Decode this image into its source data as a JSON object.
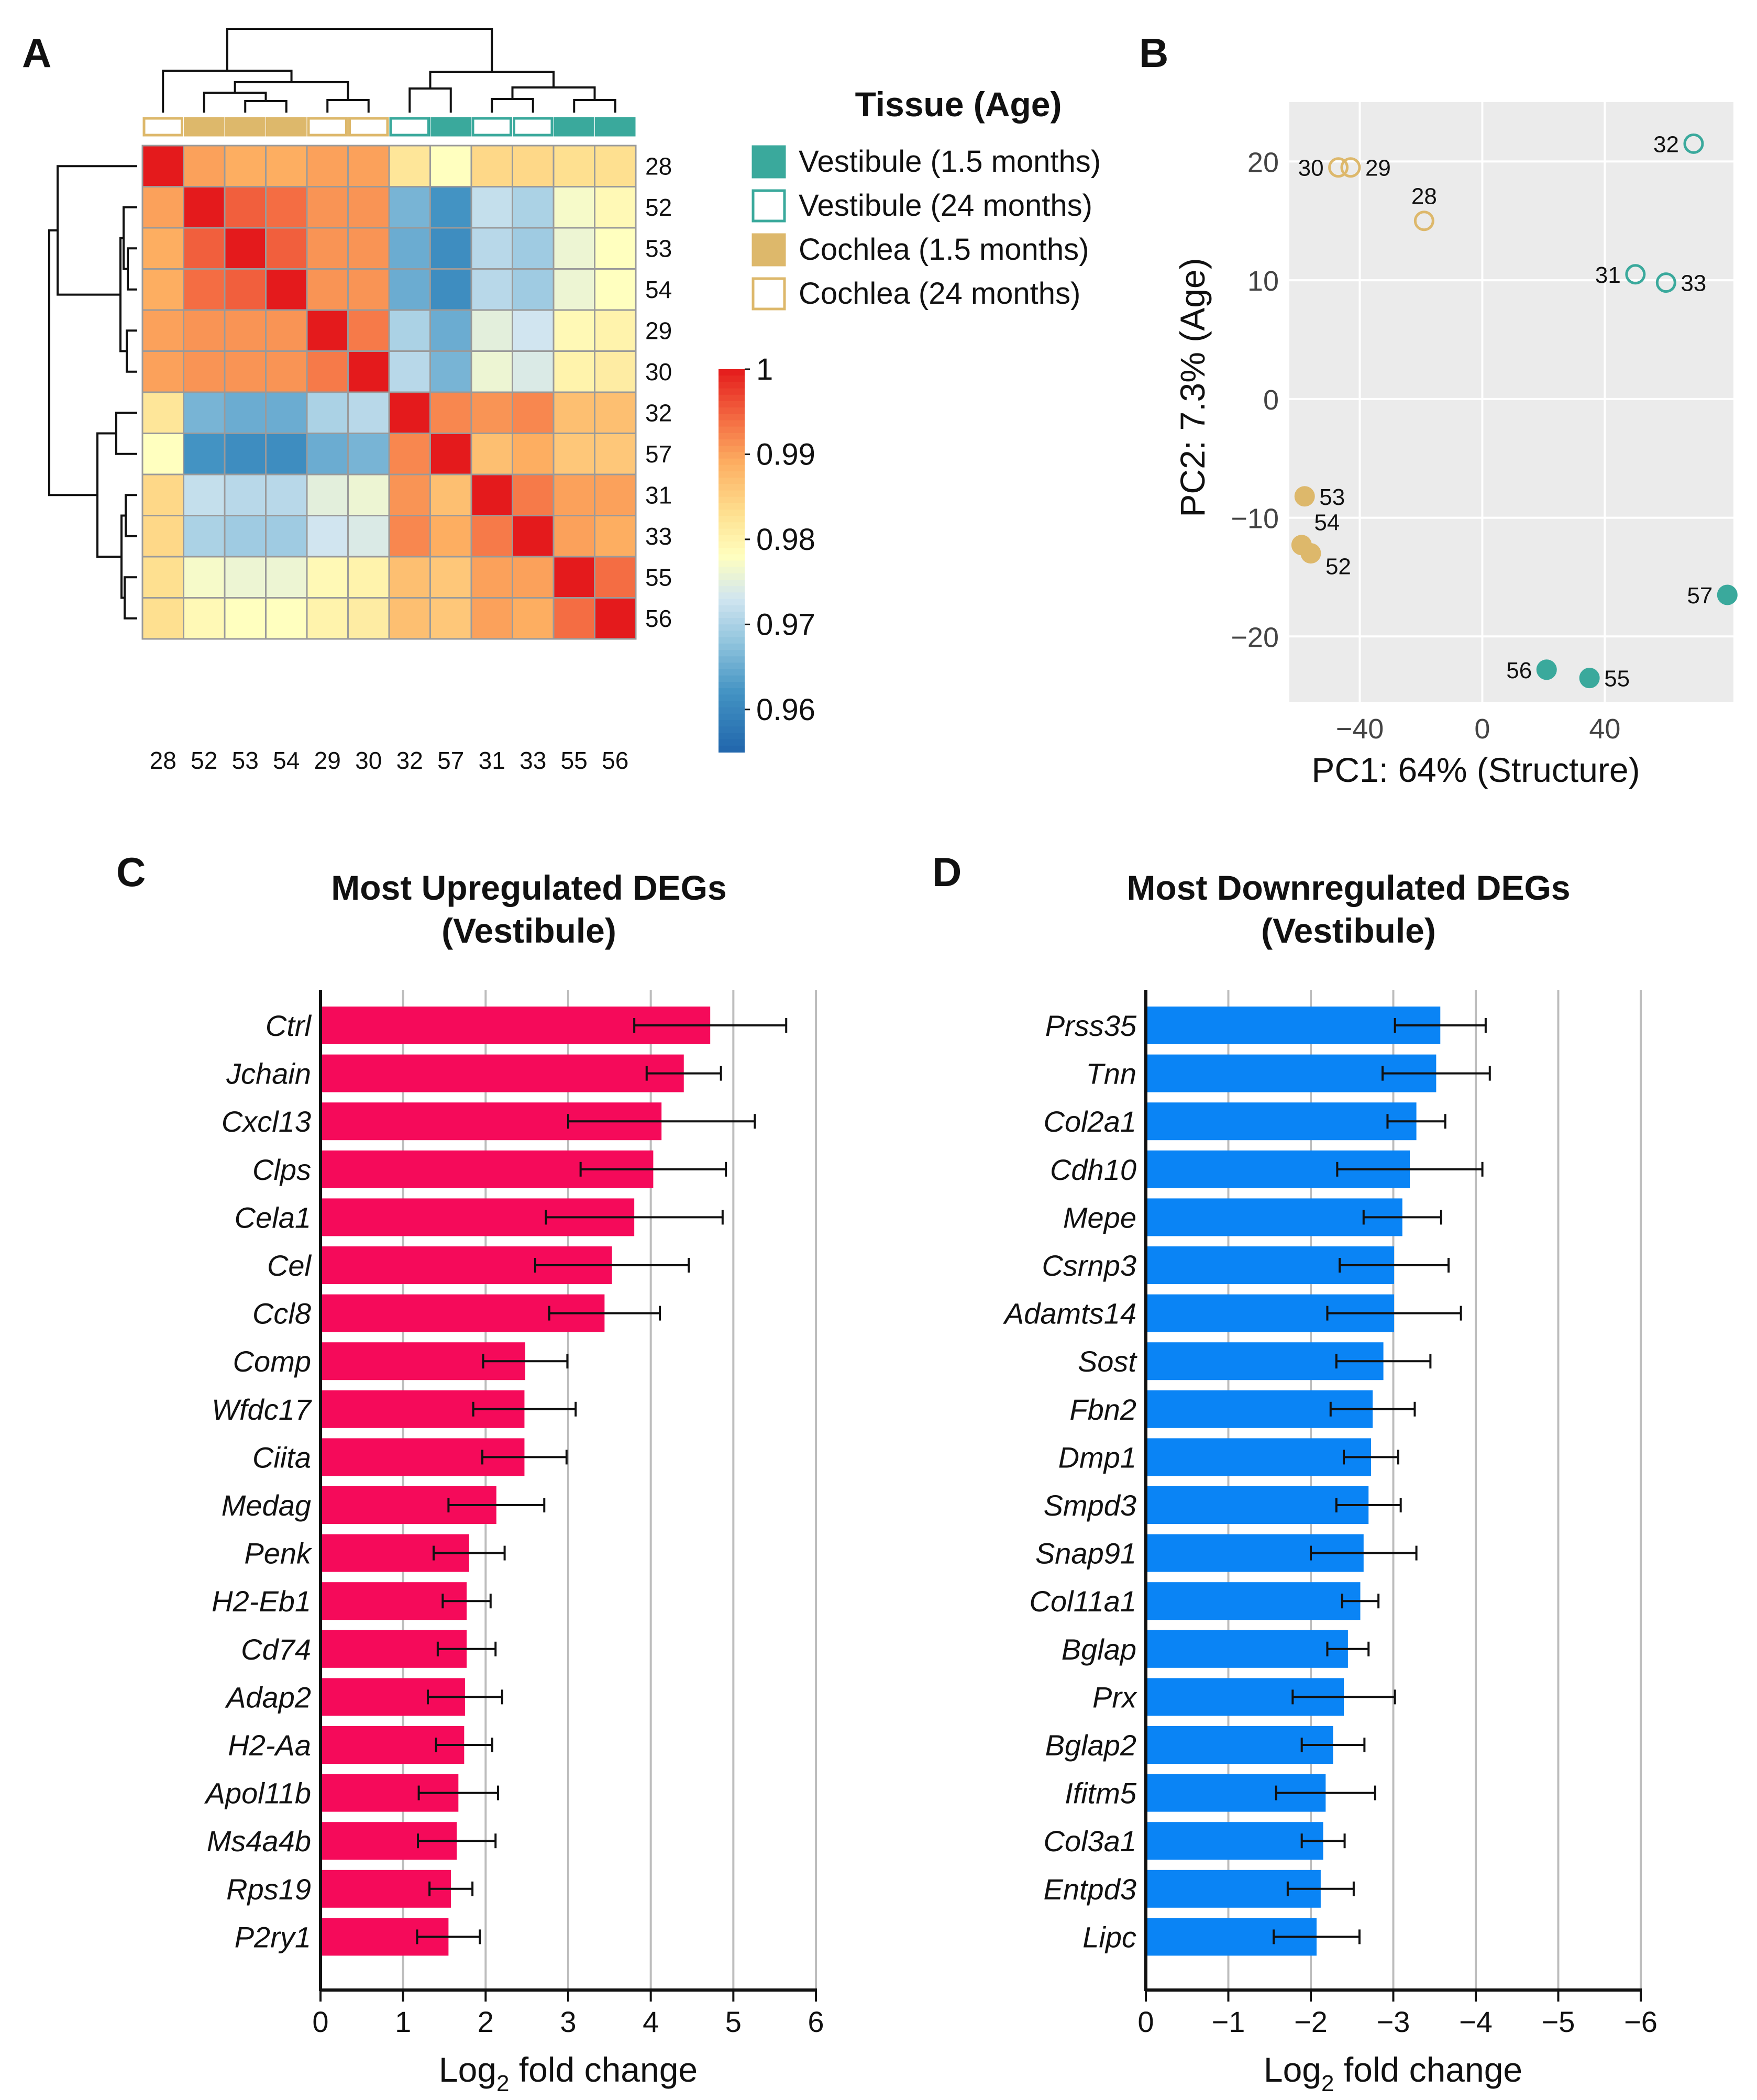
{
  "panel_labels": {
    "a": "A",
    "b": "B",
    "c": "C",
    "d": "D"
  },
  "colors": {
    "vestibule": "#3aa99c",
    "cochlea": "#ddb86b",
    "up_bar": "#f50a5a",
    "down_bar": "#0a84f5",
    "pca_bg": "#ebebeb",
    "grid": "#bdbdbd"
  },
  "chart_data": [
    {
      "panel": "A",
      "type": "heatmap",
      "title": "",
      "legend_title": "Tissue (Age)",
      "legend": [
        {
          "label": "Vestibule (1.5 months)",
          "tissue": "vestibule",
          "filled": true
        },
        {
          "label": "Vestibule (24 months)",
          "tissue": "vestibule",
          "filled": false
        },
        {
          "label": "Cochlea (1.5 months)",
          "tissue": "cochlea",
          "filled": true
        },
        {
          "label": "Cochlea (24 months)",
          "tissue": "cochlea",
          "filled": false
        }
      ],
      "col_labels": [
        "28",
        "52",
        "53",
        "54",
        "29",
        "30",
        "32",
        "57",
        "31",
        "33",
        "55",
        "56"
      ],
      "row_labels": [
        "28",
        "52",
        "53",
        "54",
        "29",
        "30",
        "32",
        "57",
        "31",
        "33",
        "55",
        "56"
      ],
      "annotation": [
        {
          "tissue": "cochlea",
          "filled": false
        },
        {
          "tissue": "cochlea",
          "filled": true
        },
        {
          "tissue": "cochlea",
          "filled": true
        },
        {
          "tissue": "cochlea",
          "filled": true
        },
        {
          "tissue": "cochlea",
          "filled": false
        },
        {
          "tissue": "cochlea",
          "filled": false
        },
        {
          "tissue": "vestibule",
          "filled": false
        },
        {
          "tissue": "vestibule",
          "filled": true
        },
        {
          "tissue": "vestibule",
          "filled": false
        },
        {
          "tissue": "vestibule",
          "filled": false
        },
        {
          "tissue": "vestibule",
          "filled": true
        },
        {
          "tissue": "vestibule",
          "filled": true
        }
      ],
      "matrix": [
        [
          1.0,
          0.99,
          0.989,
          0.989,
          0.99,
          0.99,
          0.982,
          0.978,
          0.984,
          0.984,
          0.983,
          0.983
        ],
        [
          0.99,
          1.0,
          0.995,
          0.994,
          0.991,
          0.991,
          0.966,
          0.962,
          0.972,
          0.97,
          0.977,
          0.979
        ],
        [
          0.989,
          0.995,
          1.0,
          0.995,
          0.991,
          0.991,
          0.965,
          0.961,
          0.971,
          0.969,
          0.976,
          0.978
        ],
        [
          0.989,
          0.994,
          0.995,
          1.0,
          0.991,
          0.991,
          0.965,
          0.961,
          0.971,
          0.969,
          0.976,
          0.978
        ],
        [
          0.99,
          0.991,
          0.991,
          0.991,
          1.0,
          0.993,
          0.97,
          0.965,
          0.975,
          0.973,
          0.979,
          0.98
        ],
        [
          0.99,
          0.991,
          0.991,
          0.991,
          0.993,
          1.0,
          0.971,
          0.966,
          0.976,
          0.974,
          0.98,
          0.981
        ],
        [
          0.982,
          0.966,
          0.965,
          0.965,
          0.97,
          0.971,
          1.0,
          0.992,
          0.991,
          0.992,
          0.987,
          0.987
        ],
        [
          0.978,
          0.962,
          0.961,
          0.961,
          0.965,
          0.966,
          0.992,
          1.0,
          0.987,
          0.989,
          0.986,
          0.986
        ],
        [
          0.984,
          0.972,
          0.971,
          0.971,
          0.975,
          0.976,
          0.991,
          0.987,
          1.0,
          0.993,
          0.99,
          0.99
        ],
        [
          0.984,
          0.97,
          0.969,
          0.969,
          0.973,
          0.974,
          0.992,
          0.989,
          0.993,
          1.0,
          0.99,
          0.989
        ],
        [
          0.983,
          0.977,
          0.976,
          0.976,
          0.979,
          0.98,
          0.987,
          0.986,
          0.99,
          0.99,
          1.0,
          0.994
        ],
        [
          0.983,
          0.979,
          0.978,
          0.978,
          0.98,
          0.981,
          0.987,
          0.986,
          0.99,
          0.989,
          0.994,
          1.0
        ]
      ],
      "colorbar": {
        "min": 0.955,
        "max": 1.0,
        "ticks": [
          "1",
          "0.99",
          "0.98",
          "0.97",
          "0.96"
        ],
        "tick_values": [
          1.0,
          0.99,
          0.98,
          0.97,
          0.96
        ]
      }
    },
    {
      "panel": "B",
      "type": "scatter",
      "xlabel": "PC1: 64% (Structure)",
      "ylabel": "PC2: 7.3% (Age)",
      "xlim": [
        -63,
        82
      ],
      "ylim": [
        -25.5,
        25
      ],
      "xticks": [
        -40,
        0,
        40
      ],
      "xtick_labels": [
        "−40",
        "0",
        "40"
      ],
      "yticks": [
        20,
        10,
        0,
        -10,
        -20
      ],
      "ytick_labels": [
        "20",
        "10",
        "0",
        "−10",
        "−20"
      ],
      "points": [
        {
          "label": "28",
          "x": -19,
          "y": 15.0,
          "tissue": "cochlea",
          "filled": false,
          "label_pos": "above"
        },
        {
          "label": "29",
          "x": -43,
          "y": 19.5,
          "tissue": "cochlea",
          "filled": false,
          "label_pos": "right"
        },
        {
          "label": "30",
          "x": -47,
          "y": 19.5,
          "tissue": "cochlea",
          "filled": false,
          "label_pos": "left"
        },
        {
          "label": "31",
          "x": 50,
          "y": 10.5,
          "tissue": "vestibule",
          "filled": false,
          "label_pos": "left"
        },
        {
          "label": "32",
          "x": 69,
          "y": 21.5,
          "tissue": "vestibule",
          "filled": false,
          "label_pos": "left"
        },
        {
          "label": "33",
          "x": 60,
          "y": 9.8,
          "tissue": "vestibule",
          "filled": false,
          "label_pos": "right"
        },
        {
          "label": "52",
          "x": -56,
          "y": -13.0,
          "tissue": "cochlea",
          "filled": true,
          "label_pos": "below-right"
        },
        {
          "label": "53",
          "x": -58,
          "y": -8.2,
          "tissue": "cochlea",
          "filled": true,
          "label_pos": "right"
        },
        {
          "label": "54",
          "x": -59,
          "y": -12.3,
          "tissue": "cochlea",
          "filled": true,
          "label_pos": "above-right"
        },
        {
          "label": "55",
          "x": 35,
          "y": -23.5,
          "tissue": "vestibule",
          "filled": true,
          "label_pos": "right"
        },
        {
          "label": "56",
          "x": 21,
          "y": -22.8,
          "tissue": "vestibule",
          "filled": true,
          "label_pos": "left"
        },
        {
          "label": "57",
          "x": 80,
          "y": -16.5,
          "tissue": "vestibule",
          "filled": true,
          "label_pos": "left"
        }
      ]
    },
    {
      "panel": "C",
      "type": "bar",
      "orientation": "horizontal",
      "title": "Most Upregulated DEGs",
      "subtitle": "(Vestibule)",
      "xlabel_main": "Log",
      "xlabel_sub": "2",
      "xlabel_rest": " fold change",
      "xlim": [
        0,
        6
      ],
      "xticks": [
        0,
        1,
        2,
        3,
        4,
        5,
        6
      ],
      "xtick_labels": [
        "0",
        "1",
        "2",
        "3",
        "4",
        "5",
        "6"
      ],
      "categories": [
        "Ctrl",
        "Jchain",
        "Cxcl13",
        "Clps",
        "Cela1",
        "Cel",
        "Ccl8",
        "Comp",
        "Wfdc17",
        "Ciita",
        "Medag",
        "Penk",
        "H2-Eb1",
        "Cd74",
        "Adap2",
        "H2-Aa",
        "Apol11b",
        "Ms4a4b",
        "Rps19",
        "P2ry1"
      ],
      "values": [
        4.72,
        4.4,
        4.13,
        4.03,
        3.8,
        3.53,
        3.44,
        2.48,
        2.47,
        2.47,
        2.13,
        1.8,
        1.77,
        1.77,
        1.75,
        1.74,
        1.67,
        1.65,
        1.58,
        1.55
      ],
      "errors": [
        0.92,
        0.45,
        1.13,
        0.88,
        1.07,
        0.93,
        0.67,
        0.51,
        0.62,
        0.51,
        0.58,
        0.43,
        0.29,
        0.35,
        0.45,
        0.34,
        0.48,
        0.47,
        0.26,
        0.38
      ]
    },
    {
      "panel": "D",
      "type": "bar",
      "orientation": "horizontal",
      "title": "Most Downregulated DEGs",
      "subtitle": "(Vestibule)",
      "xlabel_main": "Log",
      "xlabel_sub": "2",
      "xlabel_rest": " fold change",
      "xlim": [
        0,
        -6
      ],
      "xticks": [
        0,
        -1,
        -2,
        -3,
        -4,
        -5,
        -6
      ],
      "xtick_labels": [
        "0",
        "−1",
        "−2",
        "−3",
        "−4",
        "−5",
        "−6"
      ],
      "categories": [
        "Prss35",
        "Tnn",
        "Col2a1",
        "Cdh10",
        "Mepe",
        "Csrnp3",
        "Adamts14",
        "Sost",
        "Fbn2",
        "Dmp1",
        "Smpd3",
        "Snap91",
        "Col11a1",
        "Bglap",
        "Prx",
        "Bglap2",
        "Ifitm5",
        "Col3a1",
        "Entpd3",
        "Lipc"
      ],
      "values": [
        -3.57,
        -3.52,
        -3.28,
        -3.2,
        -3.11,
        -3.01,
        -3.01,
        -2.88,
        -2.75,
        -2.73,
        -2.7,
        -2.64,
        -2.6,
        -2.45,
        -2.4,
        -2.27,
        -2.18,
        -2.15,
        -2.12,
        -2.07
      ],
      "errors": [
        0.55,
        0.65,
        0.35,
        0.88,
        0.47,
        0.66,
        0.81,
        0.57,
        0.51,
        0.33,
        0.39,
        0.64,
        0.22,
        0.25,
        0.62,
        0.38,
        0.6,
        0.26,
        0.4,
        0.52
      ]
    }
  ]
}
